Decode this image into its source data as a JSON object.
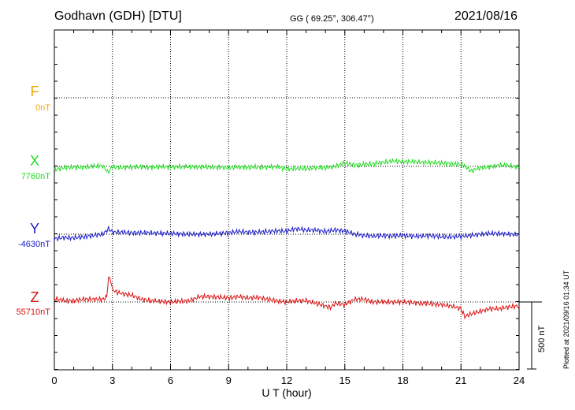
{
  "header": {
    "station": "Godhavn (GDH)  [DTU]",
    "coords": "GG ( 69.25°, 306.47°)",
    "date": "2021/08/16"
  },
  "components": [
    {
      "letter": "F",
      "base": "0nT",
      "color": "#f0a800"
    },
    {
      "letter": "X",
      "base": "7760nT",
      "color": "#22dd22"
    },
    {
      "letter": "Y",
      "base": "-4630nT",
      "color": "#1a1acc"
    },
    {
      "letter": "Z",
      "base": "55710nT",
      "color": "#dd1111"
    }
  ],
  "scale_bar": {
    "label": "500 nT",
    "nT": 500
  },
  "plotted_note": "Plotted at 2021/09/16 01:34 UT",
  "chart_data": {
    "type": "line",
    "xlabel": "U T (hour)",
    "xlim": [
      0,
      24
    ],
    "x_ticks": [
      0,
      3,
      6,
      9,
      12,
      15,
      18,
      21,
      24
    ],
    "grid": true,
    "series": [
      {
        "name": "X",
        "color": "#22dd22",
        "x": [
          0,
          0.5,
          1,
          1.5,
          2,
          2.5,
          2.7,
          2.8,
          2.9,
          3,
          3.5,
          4,
          5,
          6,
          7,
          8,
          8.8,
          9,
          9.5,
          10,
          10.5,
          11,
          11.5,
          12,
          12.5,
          13,
          13.5,
          14,
          14.5,
          15,
          15.5,
          16,
          16.5,
          17,
          17.5,
          18,
          18.5,
          19,
          19.5,
          20,
          20.5,
          21,
          21.3,
          21.5,
          22,
          22.5,
          23,
          23.5,
          24
        ],
        "y": [
          -25,
          -10,
          -5,
          -8,
          0,
          5,
          -30,
          -50,
          -15,
          -5,
          -8,
          -5,
          -5,
          -3,
          -3,
          -5,
          -8,
          -10,
          -5,
          -8,
          -5,
          -5,
          -3,
          -20,
          -15,
          -18,
          -10,
          -10,
          0,
          25,
          10,
          15,
          20,
          30,
          40,
          35,
          35,
          30,
          30,
          25,
          20,
          15,
          -10,
          -35,
          -10,
          -5,
          10,
          5,
          -5
        ]
      },
      {
        "name": "Y",
        "color": "#1a1acc",
        "x": [
          0,
          0.5,
          1,
          1.5,
          2,
          2.5,
          2.8,
          3,
          3.5,
          4,
          5,
          6,
          7,
          8,
          9,
          9.5,
          10,
          10.5,
          11,
          11.5,
          12,
          12.3,
          12.5,
          13,
          13.5,
          14,
          14.5,
          15,
          15.5,
          16,
          16.5,
          17,
          17.5,
          18,
          18.5,
          19,
          19.5,
          20,
          20.5,
          21,
          21.5,
          22,
          22.5,
          23,
          23.5,
          24
        ],
        "y": [
          -35,
          -25,
          -28,
          -20,
          -10,
          0,
          40,
          15,
          15,
          10,
          10,
          5,
          0,
          0,
          10,
          20,
          15,
          15,
          20,
          25,
          20,
          35,
          40,
          30,
          30,
          20,
          30,
          25,
          0,
          -10,
          -15,
          -10,
          -15,
          -10,
          -15,
          -15,
          -10,
          -20,
          -20,
          -15,
          -10,
          0,
          5,
          5,
          0,
          -5
        ]
      },
      {
        "name": "Z",
        "color": "#dd1111",
        "x": [
          0,
          0.5,
          1,
          1.5,
          2,
          2.5,
          2.7,
          2.8,
          2.9,
          3,
          3.3,
          3.6,
          4,
          4.5,
          5,
          6,
          7,
          7.5,
          8,
          8.5,
          9,
          9.5,
          10,
          10.5,
          11,
          11.5,
          12,
          12.5,
          13,
          13.5,
          14,
          14.3,
          14.5,
          15,
          15.5,
          16,
          16.5,
          17,
          17.5,
          18,
          19,
          20,
          20.5,
          21,
          21.2,
          21.5,
          22,
          22.5,
          23,
          23.5,
          24
        ],
        "y": [
          25,
          10,
          10,
          20,
          20,
          20,
          35,
          180,
          170,
          90,
          70,
          60,
          50,
          20,
          10,
          0,
          10,
          40,
          40,
          35,
          30,
          40,
          30,
          35,
          20,
          10,
          0,
          10,
          10,
          -10,
          -30,
          -40,
          -10,
          -20,
          20,
          20,
          0,
          0,
          0,
          0,
          -10,
          -20,
          -30,
          -50,
          -110,
          -90,
          -70,
          -50,
          -50,
          -35,
          -30
        ]
      }
    ]
  }
}
